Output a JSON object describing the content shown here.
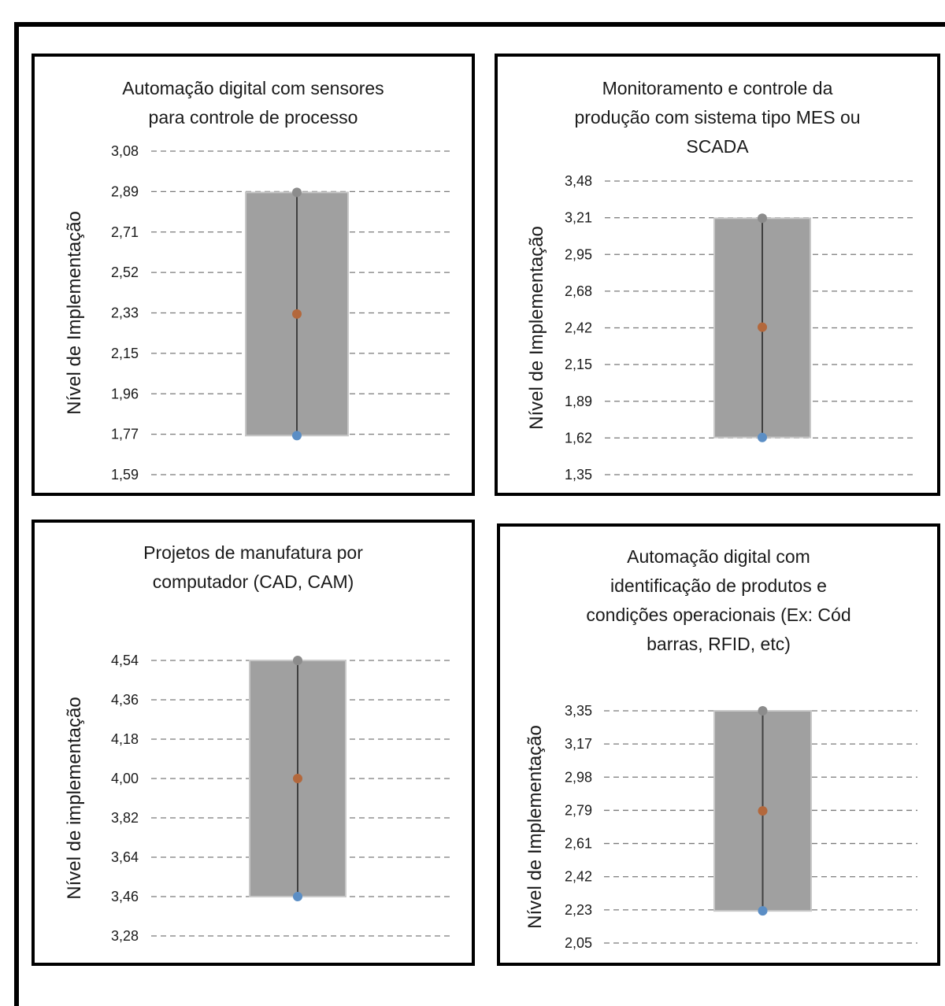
{
  "chart_data": [
    {
      "type": "range",
      "title": [
        "Automação digital com sensores",
        "para controle de processo"
      ],
      "ylabel": "Nível de Implementação",
      "ticks": [
        "3,08",
        "2,89",
        "2,71",
        "2,52",
        "2,33",
        "2,15",
        "1,96",
        "1,77",
        "1,59"
      ],
      "ylim": [
        1.59,
        3.08
      ],
      "max": 2.89,
      "mean": 2.33,
      "min": 1.77,
      "grid": true
    },
    {
      "type": "range",
      "title": [
        "Monitoramento  e controle da",
        "produção com sistema tipo MES ou",
        "SCADA"
      ],
      "ylabel": "Nível de Implementação",
      "ticks": [
        "3,48",
        "3,21",
        "2,95",
        "2,68",
        "2,42",
        "2,15",
        "1,89",
        "1,62",
        "1,35"
      ],
      "ylim": [
        1.35,
        3.48
      ],
      "max": 3.21,
      "mean": 2.42,
      "min": 1.62,
      "grid": true
    },
    {
      "type": "range",
      "title": [
        "Projetos de manufatura por",
        "computador  (CAD, CAM)"
      ],
      "ylabel": "Nível de implementação",
      "ticks": [
        "4,54",
        "4,36",
        "4,18",
        "4,00",
        "3,82",
        "3,64",
        "3,46",
        "3,28"
      ],
      "ylim": [
        3.28,
        4.54
      ],
      "max": 4.54,
      "mean": 4.0,
      "min": 3.46,
      "grid": true
    },
    {
      "type": "range",
      "title": [
        "Automação digital com",
        "identificação de produtos e",
        "condições operacionais (Ex: Cód",
        "barras, RFID, etc)"
      ],
      "ylabel": "Nível de Implementação",
      "ticks": [
        "3,35",
        "3,17",
        "2,98",
        "2,79",
        "2,61",
        "2,42",
        "2,23",
        "2,05"
      ],
      "ylim": [
        2.05,
        3.35
      ],
      "max": 3.35,
      "mean": 2.79,
      "min": 2.23,
      "grid": true
    }
  ],
  "colors": {
    "box": "#a0a0a0",
    "box_border": "#c8c8c8",
    "whisker": "#404040",
    "max_dot": "#8c8c8c",
    "mean_dot": "#b3683c",
    "min_dot": "#5b8ec5",
    "grid": "#7a7a7a"
  }
}
